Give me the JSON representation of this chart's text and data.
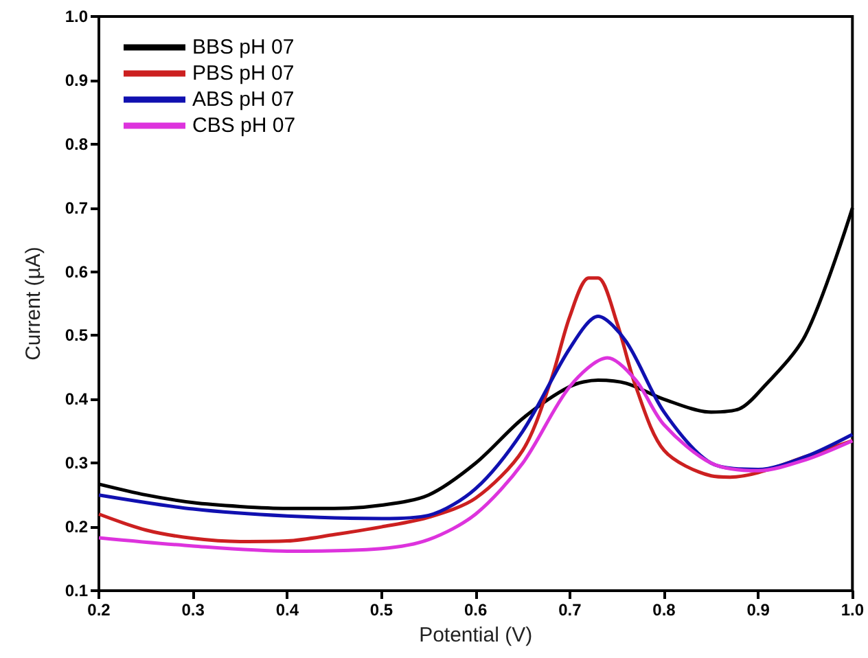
{
  "chart_data": {
    "type": "line",
    "xlabel": "Potential (V)",
    "ylabel": "Current (µA)",
    "xlim": [
      0.2,
      1.0
    ],
    "ylim": [
      0.1,
      1.0
    ],
    "xticks": [
      0.2,
      0.3,
      0.4,
      0.5,
      0.6,
      0.7,
      0.8,
      0.9,
      {
        "value": 1,
        "label": "1.0"
      }
    ],
    "yticks": [
      0.1,
      0.2,
      0.3,
      0.4,
      0.5,
      0.6,
      0.7,
      0.8,
      0.9,
      {
        "value": 1,
        "label": "1.0"
      }
    ],
    "grid": false,
    "legend": "top left",
    "marker": "none",
    "line_style": "solid",
    "series": [
      {
        "name": "BBS pH 07",
        "color": "#000000",
        "x": [
          0.2,
          0.25,
          0.3,
          0.35,
          0.4,
          0.45,
          0.5,
          0.55,
          0.6,
          0.65,
          0.7,
          0.73,
          0.76,
          0.8,
          0.85,
          0.88,
          0.9,
          0.95,
          1.0
        ],
        "values": [
          0.267,
          0.25,
          0.238,
          0.232,
          0.229,
          0.229,
          0.234,
          0.25,
          0.3,
          0.37,
          0.42,
          0.43,
          0.425,
          0.4,
          0.38,
          0.385,
          0.41,
          0.5,
          0.7
        ]
      },
      {
        "name": "PBS pH 07",
        "color": "#cc2020",
        "x": [
          0.2,
          0.25,
          0.3,
          0.35,
          0.4,
          0.45,
          0.5,
          0.55,
          0.6,
          0.65,
          0.68,
          0.7,
          0.72,
          0.73,
          0.75,
          0.77,
          0.8,
          0.85,
          0.87,
          0.9,
          0.95,
          1.0
        ],
        "values": [
          0.22,
          0.195,
          0.182,
          0.177,
          0.178,
          0.188,
          0.2,
          0.215,
          0.245,
          0.32,
          0.43,
          0.53,
          0.59,
          0.59,
          0.52,
          0.42,
          0.32,
          0.28,
          0.278,
          0.285,
          0.31,
          0.335
        ]
      },
      {
        "name": "ABS pH 07",
        "color": "#1010b0",
        "x": [
          0.2,
          0.3,
          0.4,
          0.5,
          0.55,
          0.6,
          0.65,
          0.7,
          0.73,
          0.76,
          0.8,
          0.85,
          0.9,
          0.95,
          1.0
        ],
        "values": [
          0.25,
          0.228,
          0.217,
          0.213,
          0.218,
          0.26,
          0.35,
          0.48,
          0.53,
          0.49,
          0.38,
          0.3,
          0.29,
          0.31,
          0.345
        ]
      },
      {
        "name": "CBS pH 07",
        "color": "#dd33dd",
        "x": [
          0.2,
          0.3,
          0.4,
          0.5,
          0.55,
          0.6,
          0.65,
          0.7,
          0.74,
          0.77,
          0.8,
          0.85,
          0.9,
          0.95,
          1.0
        ],
        "values": [
          0.183,
          0.17,
          0.162,
          0.166,
          0.18,
          0.22,
          0.3,
          0.42,
          0.465,
          0.43,
          0.36,
          0.3,
          0.288,
          0.305,
          0.335
        ]
      }
    ]
  }
}
